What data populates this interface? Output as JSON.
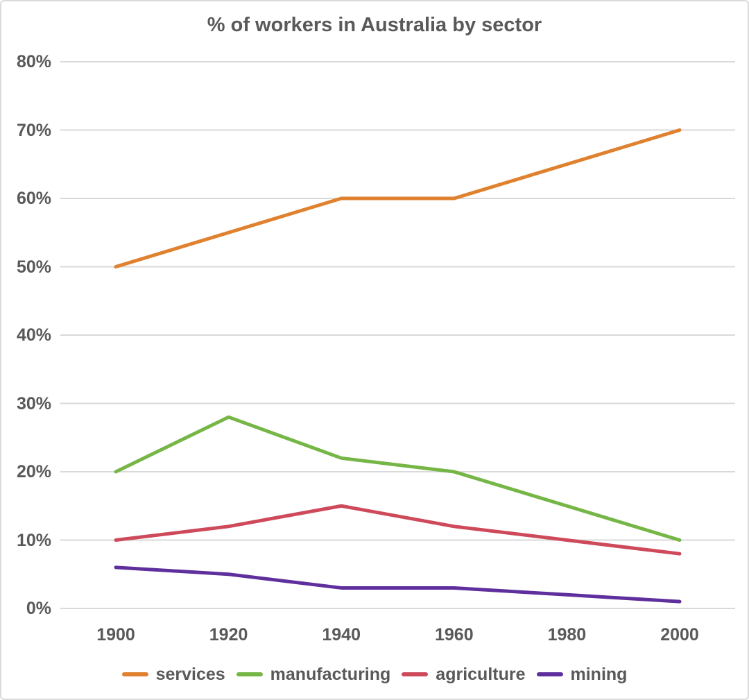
{
  "page": {
    "background": "#ffffff",
    "border_color": "#dadada"
  },
  "chart_data": {
    "type": "line",
    "title": "% of workers in Australia by sector",
    "x": [
      1900,
      1920,
      1940,
      1960,
      1980,
      2000
    ],
    "x_tick_labels": [
      "1900",
      "1920",
      "1940",
      "1960",
      "1980",
      "2000"
    ],
    "y_ticks": [
      0,
      10,
      20,
      30,
      40,
      50,
      60,
      70,
      80
    ],
    "y_tick_labels": [
      "0%",
      "10%",
      "20%",
      "30%",
      "40%",
      "50%",
      "60%",
      "70%",
      "80%"
    ],
    "ylim": [
      0,
      80
    ],
    "grid": "horizontal",
    "gridline_color": "#d9d9d9",
    "text_color": "#595959",
    "legend_position": "bottom",
    "series": [
      {
        "name": "services",
        "color": "#e0812f",
        "values": [
          50,
          55,
          60,
          60,
          65,
          70
        ]
      },
      {
        "name": "manufacturing",
        "color": "#76b647",
        "values": [
          20,
          28,
          22,
          20,
          15,
          10
        ]
      },
      {
        "name": "agriculture",
        "color": "#ce4a5b",
        "values": [
          10,
          12,
          15,
          12,
          10,
          8
        ]
      },
      {
        "name": "mining",
        "color": "#5f309d",
        "values": [
          6,
          5,
          3,
          3,
          2,
          1
        ]
      }
    ]
  }
}
